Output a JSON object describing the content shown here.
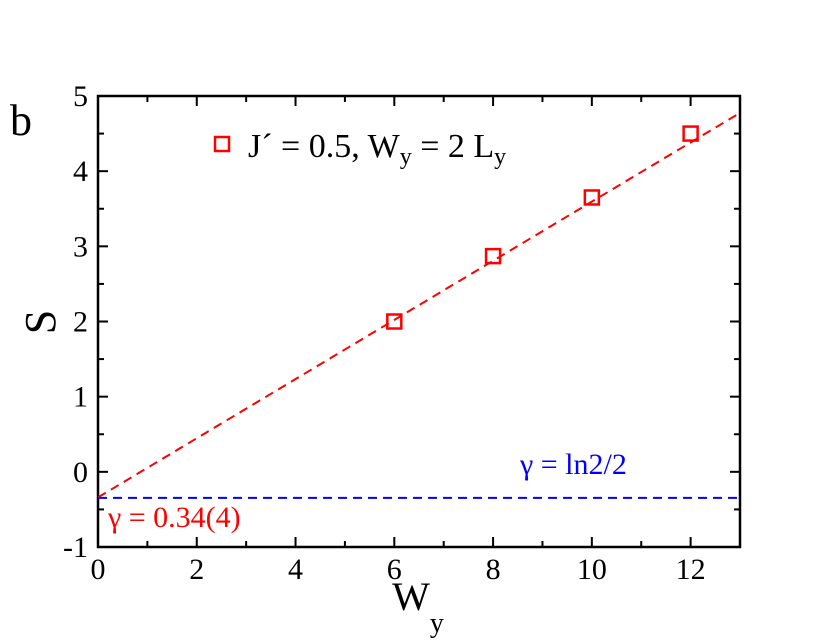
{
  "panel_label": "b",
  "chart_data": {
    "type": "scatter",
    "xlabel_main": "W",
    "xlabel_sub": "y",
    "ylabel": "S",
    "xlim": [
      0,
      13
    ],
    "ylim": [
      -1,
      5
    ],
    "x_ticks": [
      0,
      2,
      4,
      6,
      8,
      10,
      12
    ],
    "y_ticks": [
      -1,
      0,
      1,
      2,
      3,
      4,
      5
    ],
    "x_tick_labels": [
      "0",
      "2",
      "4",
      "6",
      "8",
      "10",
      "12"
    ],
    "y_tick_labels": [
      "-1",
      "0",
      "1",
      "2",
      "3",
      "4",
      "5"
    ],
    "grid": false,
    "legend_position": "top-center",
    "legend": {
      "prefix": "J´ = 0.5, W",
      "sub1": "y",
      "middle": " = 2 L",
      "sub2": "y"
    },
    "series": [
      {
        "x": [
          6,
          8,
          10,
          12
        ],
        "y": [
          2.0,
          2.87,
          3.65,
          4.5
        ],
        "marker": "open-square",
        "color": "#ff0000"
      }
    ],
    "fit_line": {
      "intercept": -0.34,
      "slope": 0.3935,
      "color": "#ff0000",
      "style": "dashed"
    },
    "reference_line": {
      "y": -0.3466,
      "color": "#0000ff",
      "style": "dashed"
    },
    "annotations": {
      "blue_gamma": "γ = ln2/2",
      "red_gamma": "γ = 0.34(4)"
    }
  }
}
